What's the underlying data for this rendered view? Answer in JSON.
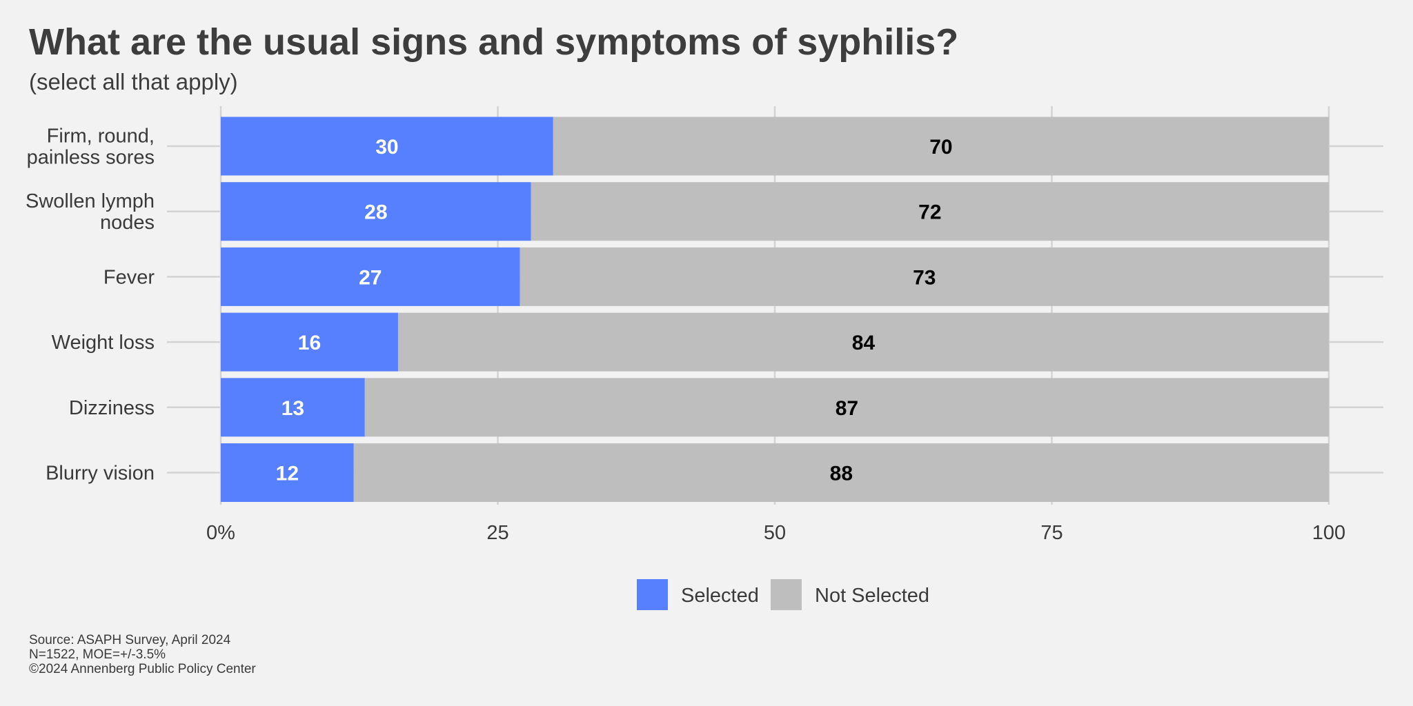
{
  "chart_data": {
    "type": "bar",
    "orientation": "horizontal",
    "stacked": true,
    "title": "What are the usual signs and symptoms of syphilis?",
    "subtitle": "(select all that apply)",
    "categories": [
      "Firm, round,\npainless sores",
      "Swollen lymph\nnodes",
      "Fever",
      "Weight loss",
      "Dizziness",
      "Blurry vision"
    ],
    "series": [
      {
        "name": "Selected",
        "color": "#5680ff",
        "label_color": "#ffffff",
        "values": [
          30,
          28,
          27,
          16,
          13,
          12
        ]
      },
      {
        "name": "Not Selected",
        "color": "#bebebe",
        "label_color": "#000000",
        "values": [
          70,
          72,
          73,
          84,
          87,
          88
        ]
      }
    ],
    "xlim": [
      0,
      100
    ],
    "x_ticks": [
      0,
      25,
      50,
      75,
      100
    ],
    "x_tick_labels": [
      "0%",
      "25",
      "50",
      "75",
      "100"
    ],
    "grid": true,
    "legend_position": "bottom",
    "background": "#f2f2f2"
  },
  "footer": {
    "source": "Source: ASAPH Survey, April 2024",
    "sample": "N=1522, MOE=+/-3.5%",
    "copyright": "©2024 Annenberg Public Policy Center"
  }
}
